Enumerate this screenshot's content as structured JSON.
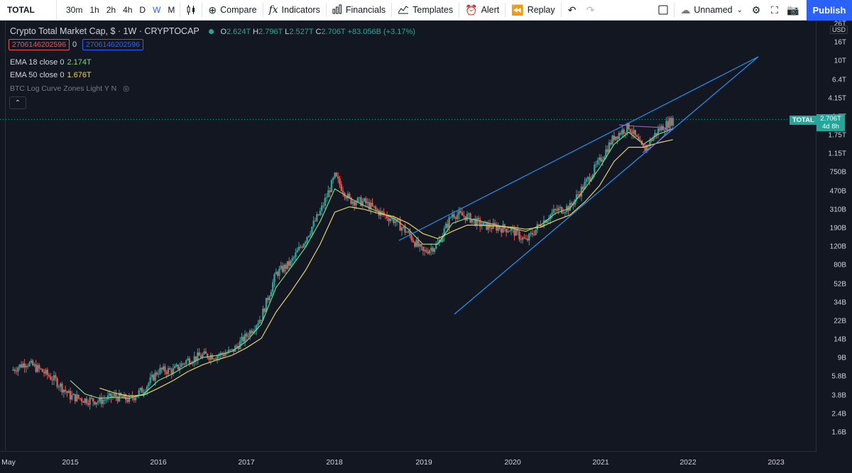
{
  "toolbar": {
    "symbol": "TOTAL",
    "intervals": [
      "30m",
      "1h",
      "2h",
      "4h",
      "D",
      "W",
      "M"
    ],
    "active_interval": "W",
    "compare": "Compare",
    "indicators": "Indicators",
    "financials": "Financials",
    "templates": "Templates",
    "alert": "Alert",
    "replay": "Replay",
    "layout_name": "Unnamed",
    "publish": "Publish"
  },
  "legend": {
    "title": "Crypto Total Market Cap, $ · 1W · CRYPTOCAP",
    "o_label": "O",
    "o": "2.624T",
    "h_label": "H",
    "h": "2.796T",
    "l_label": "L",
    "l": "2.527T",
    "c_label": "C",
    "c": "2.706T",
    "change": "+83.056B (+3.17%)",
    "bid": "2706146202596",
    "spread": "0",
    "ask": "2706146202596"
  },
  "indicators": [
    {
      "label": "EMA 18 close 0",
      "value": "2.174T",
      "color": "#89d185"
    },
    {
      "label": "EMA 50 close 0",
      "value": "1.676T",
      "color": "#e6d562"
    },
    {
      "label": "BTC Log Curve Zones Light Y N",
      "value": "",
      "color": "#787b86"
    }
  ],
  "price_axis": {
    "currency": "USD",
    "labels": [
      "26T",
      "16T",
      "10T",
      "6.4T",
      "4.15T",
      "2.7T",
      "1.75T",
      "1.15T",
      "750B",
      "470B",
      "310B",
      "190B",
      "120B",
      "80B",
      "52B",
      "34B",
      "22B",
      "14B",
      "9B",
      "5.8B",
      "3.8B",
      "2.4B",
      "1.6B"
    ],
    "last_price": "2.706T",
    "countdown": "4d 8h",
    "series_tag": "TOTAL"
  },
  "time_axis": {
    "labels": [
      "May",
      "2015",
      "2016",
      "2017",
      "2018",
      "2019",
      "2020",
      "2021",
      "2022",
      "2023"
    ]
  },
  "chart_data": {
    "type": "candlestick",
    "scale": "log",
    "x": [
      "2014-05",
      "2014-07",
      "2014-09",
      "2014-11",
      "2015-01",
      "2015-03",
      "2015-05",
      "2015-07",
      "2015-09",
      "2015-11",
      "2016-01",
      "2016-03",
      "2016-05",
      "2016-07",
      "2016-09",
      "2016-11",
      "2017-01",
      "2017-03",
      "2017-05",
      "2017-07",
      "2017-09",
      "2017-11",
      "2018-01",
      "2018-03",
      "2018-05",
      "2018-07",
      "2018-09",
      "2018-11",
      "2019-01",
      "2019-03",
      "2019-05",
      "2019-07",
      "2019-09",
      "2019-11",
      "2020-01",
      "2020-03",
      "2020-05",
      "2020-07",
      "2020-09",
      "2020-11",
      "2021-01",
      "2021-03",
      "2021-05",
      "2021-07",
      "2021-09",
      "2021-11"
    ],
    "close_billion": [
      7,
      8.5,
      7,
      5.5,
      3.8,
      3.5,
      3.4,
      3.8,
      3.5,
      4.5,
      7,
      7,
      9,
      10,
      10,
      11,
      16,
      25,
      70,
      90,
      160,
      300,
      700,
      400,
      380,
      300,
      250,
      180,
      115,
      140,
      290,
      270,
      220,
      210,
      200,
      150,
      230,
      310,
      340,
      580,
      1000,
      1800,
      2300,
      1300,
      2100,
      2706
    ],
    "ema18_billion": [
      null,
      null,
      null,
      null,
      5.5,
      4,
      3.6,
      3.7,
      3.6,
      4,
      5.5,
      6.5,
      8,
      9.5,
      10,
      11,
      14,
      21,
      50,
      80,
      130,
      240,
      520,
      420,
      350,
      300,
      260,
      200,
      140,
      140,
      230,
      260,
      240,
      220,
      205,
      190,
      220,
      290,
      330,
      520,
      850,
      1500,
      2000,
      1500,
      1900,
      2174
    ],
    "ema50_billion": [
      null,
      null,
      null,
      null,
      null,
      null,
      4.6,
      4.1,
      3.8,
      3.9,
      4.6,
      5.5,
      6.8,
      8,
      9,
      10,
      12,
      15,
      28,
      45,
      75,
      140,
      300,
      340,
      320,
      290,
      270,
      230,
      180,
      160,
      190,
      220,
      220,
      215,
      210,
      200,
      210,
      245,
      280,
      380,
      560,
      1000,
      1400,
      1400,
      1550,
      1676
    ],
    "trendlines": [
      "upper resistance from 2018-11 through 2021-05",
      "lower support from 2018-12 through 2021-07"
    ],
    "ylim": [
      "1.6B",
      "26T"
    ]
  }
}
